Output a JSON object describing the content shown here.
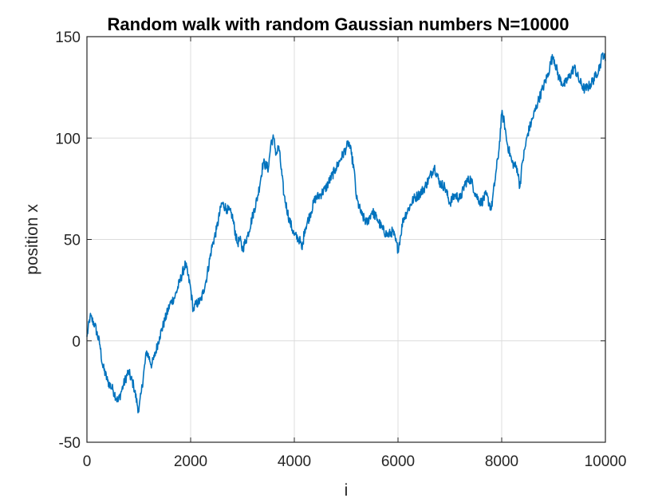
{
  "chart_data": {
    "type": "line",
    "title": "Random walk with random Gaussian numbers N=10000",
    "xlabel": "i",
    "ylabel": "position x",
    "xlim": [
      0,
      10000
    ],
    "ylim": [
      -50,
      150
    ],
    "xticks": [
      0,
      2000,
      4000,
      6000,
      8000,
      10000
    ],
    "xtick_labels": [
      "0",
      "2000",
      "4000",
      "6000",
      "8000",
      "10000"
    ],
    "yticks": [
      -50,
      0,
      50,
      100,
      150
    ],
    "ytick_labels": [
      "-50",
      "0",
      "50",
      "100",
      "150"
    ],
    "grid": true,
    "line_color": "#0072BD",
    "series": [
      {
        "x": [
          0,
          60,
          150,
          250,
          300,
          400,
          500,
          600,
          650,
          700,
          800,
          900,
          1000,
          1050,
          1150,
          1250,
          1300,
          1400,
          1500,
          1600,
          1700,
          1800,
          1900,
          2000,
          2050,
          2100,
          2200,
          2300,
          2400,
          2500,
          2600,
          2700,
          2800,
          2900,
          2950,
          3000,
          3100,
          3200,
          3300,
          3400,
          3500,
          3550,
          3600,
          3650,
          3700,
          3800,
          3900,
          4000,
          4100,
          4150,
          4200,
          4300,
          4400,
          4500,
          4600,
          4700,
          4800,
          4900,
          5000,
          5050,
          5100,
          5150,
          5200,
          5300,
          5400,
          5500,
          5600,
          5700,
          5800,
          5900,
          6000,
          6050,
          6100,
          6200,
          6300,
          6400,
          6500,
          6600,
          6700,
          6800,
          6900,
          7000,
          7100,
          7200,
          7300,
          7400,
          7500,
          7600,
          7700,
          7800,
          7900,
          7950,
          8000,
          8050,
          8100,
          8200,
          8300,
          8350,
          8400,
          8500,
          8600,
          8700,
          8800,
          8900,
          8950,
          9000,
          9100,
          9200,
          9300,
          9400,
          9500,
          9600,
          9700,
          9800,
          9900,
          9950,
          10000
        ],
        "y": [
          2,
          12,
          8,
          -2,
          -12,
          -20,
          -24,
          -30,
          -26,
          -22,
          -15,
          -22,
          -35,
          -25,
          -5,
          -12,
          -8,
          2,
          10,
          18,
          22,
          30,
          38,
          26,
          15,
          18,
          20,
          30,
          45,
          55,
          68,
          65,
          62,
          48,
          50,
          45,
          52,
          62,
          72,
          88,
          85,
          98,
          100,
          92,
          96,
          72,
          60,
          52,
          50,
          45,
          55,
          62,
          70,
          72,
          75,
          80,
          85,
          90,
          95,
          98,
          92,
          85,
          70,
          62,
          58,
          64,
          60,
          55,
          52,
          54,
          45,
          52,
          60,
          65,
          70,
          72,
          75,
          80,
          86,
          78,
          76,
          68,
          72,
          70,
          78,
          80,
          72,
          68,
          72,
          65,
          85,
          95,
          112,
          108,
          98,
          88,
          85,
          76,
          88,
          102,
          110,
          118,
          125,
          132,
          138,
          140,
          130,
          126,
          130,
          135,
          128,
          124,
          126,
          130,
          136,
          142,
          138
        ]
      }
    ]
  }
}
